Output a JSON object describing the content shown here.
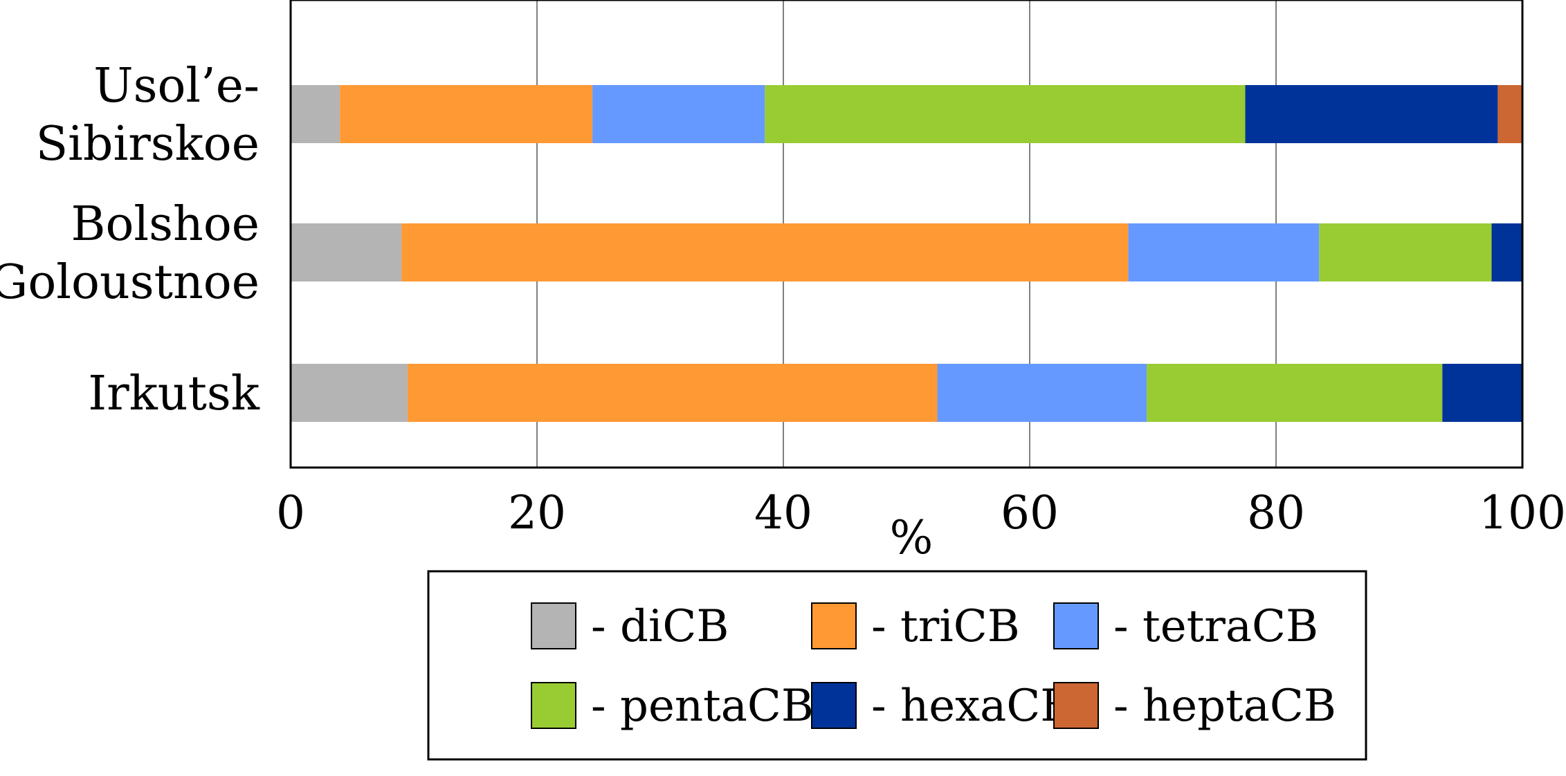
{
  "chart_data": {
    "type": "bar",
    "orientation": "horizontal",
    "stacked": true,
    "categories": [
      [
        "Usol’e-",
        "Sibirskoe"
      ],
      [
        "Bolshoe",
        "Goloustnoe"
      ],
      [
        "Irkutsk"
      ]
    ],
    "series": [
      {
        "name": "- diCB",
        "color": "#b4b4b4",
        "values": [
          4,
          9,
          9.5
        ]
      },
      {
        "name": "- triCB",
        "color": "#ff9933",
        "values": [
          20.5,
          59,
          43
        ]
      },
      {
        "name": "- tetraCB",
        "color": "#6699ff",
        "values": [
          14,
          15.5,
          17
        ]
      },
      {
        "name": "- pentaCB",
        "color": "#99cc33",
        "values": [
          39,
          14,
          24
        ]
      },
      {
        "name": "- hexaCB",
        "color": "#003399",
        "values": [
          20.5,
          2.5,
          6.5
        ]
      },
      {
        "name": "- heptaCB",
        "color": "#cc6633",
        "values": [
          2,
          0,
          0
        ]
      }
    ],
    "xlabel": "%",
    "xlim": [
      0,
      100
    ],
    "xticks": [
      0,
      20,
      40,
      60,
      80,
      100
    ],
    "grid": true,
    "legend": "bottom"
  }
}
